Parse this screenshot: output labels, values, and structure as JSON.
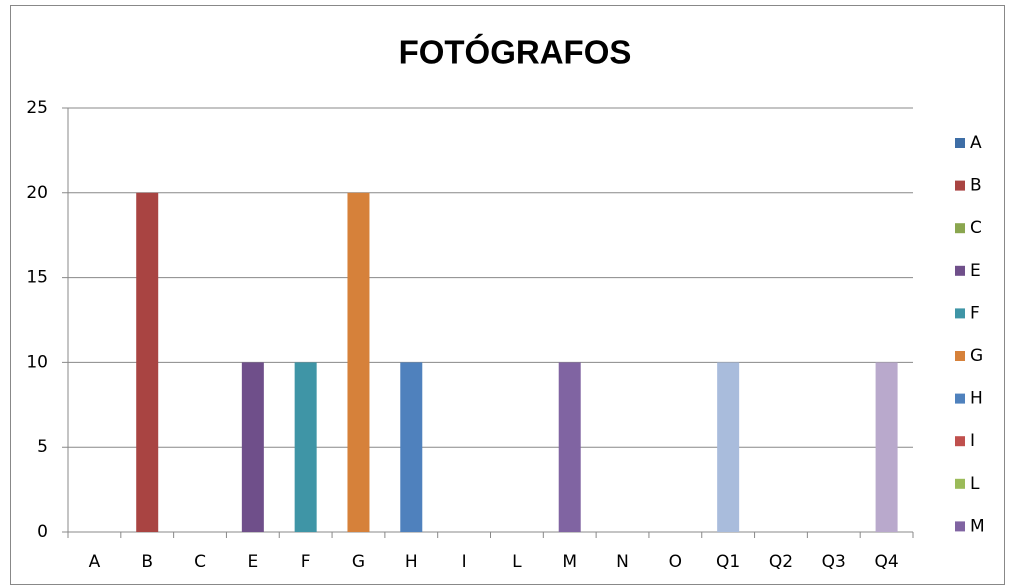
{
  "chart_data": {
    "type": "bar",
    "title": "FOTÓGRAFOS",
    "categories": [
      "A",
      "B",
      "C",
      "E",
      "F",
      "G",
      "H",
      "I",
      "L",
      "M",
      "N",
      "O",
      "Q1",
      "Q2",
      "Q3",
      "Q4"
    ],
    "values": [
      0,
      20,
      0,
      10,
      10,
      20,
      10,
      0,
      0,
      10,
      0,
      0,
      10,
      0,
      0,
      10
    ],
    "colors": [
      "#3e6ea6",
      "#a94442",
      "#8aa64f",
      "#6f4f8a",
      "#3f95a6",
      "#d6813a",
      "#4f81bd",
      "#c0504d",
      "#9bbb59",
      "#8064a2",
      "#4bacc6",
      "#f79646",
      "#a9bcdc",
      "#dba9a8",
      "#c8d9a9",
      "#b9a9cc"
    ],
    "ylim": [
      0,
      25
    ],
    "yticks": [
      0,
      5,
      10,
      15,
      20,
      25
    ],
    "grid": true,
    "legend": "right"
  }
}
